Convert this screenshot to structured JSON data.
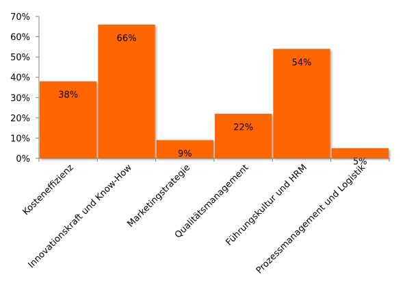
{
  "chart_data": {
    "type": "bar",
    "categories": [
      "Kosteneffizienz",
      "Innovationskraft und Know-How",
      "Marketingstrategie",
      "Qualitätsmanagement",
      "Führungskultur und HRM",
      "Prozessmanagement und Logistik"
    ],
    "values": [
      38,
      66,
      9,
      22,
      54,
      5
    ],
    "data_labels": [
      "38%",
      "66%",
      "9%",
      "22%",
      "54%",
      "5%"
    ],
    "y_ticks": [
      "0%",
      "10%",
      "20%",
      "30%",
      "40%",
      "50%",
      "60%",
      "70%"
    ],
    "ylim": [
      0,
      70
    ],
    "bar_color": "#ff6600",
    "grid": false,
    "legend": "none",
    "title": "",
    "xlabel": "",
    "ylabel": ""
  }
}
